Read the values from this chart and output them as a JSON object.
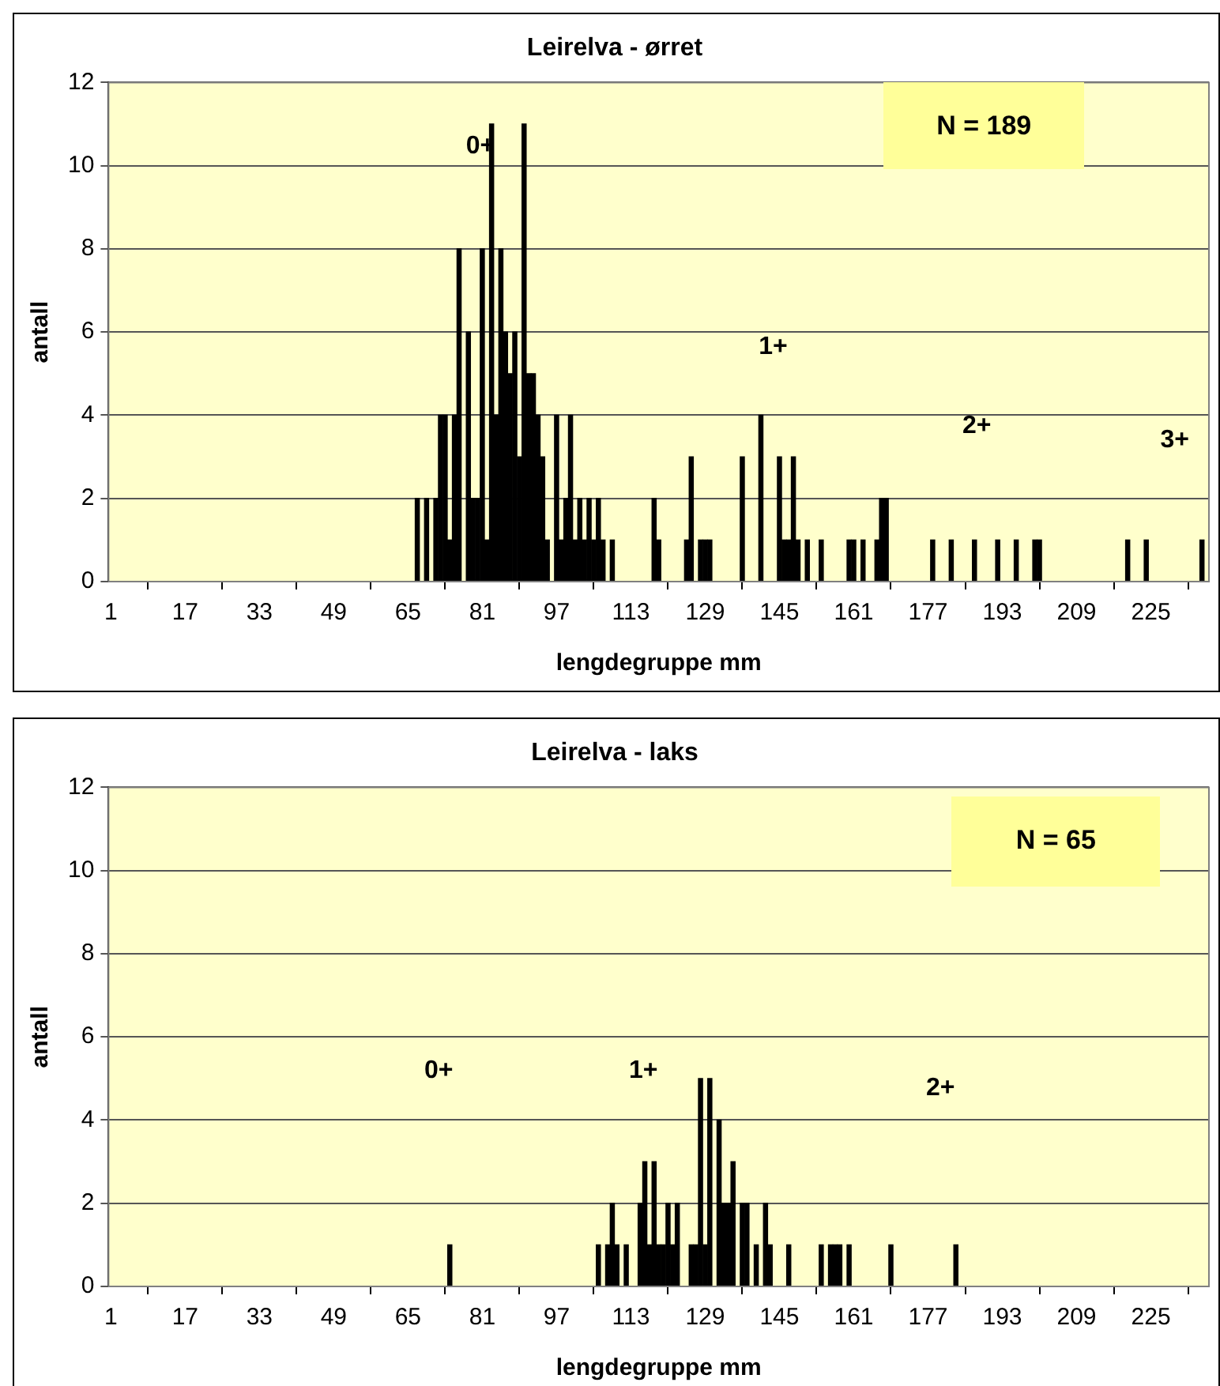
{
  "chart_data": [
    {
      "type": "bar",
      "title": "Leirelva - ørret",
      "xlabel": "lengdegruppe mm",
      "ylabel": "antall",
      "color": "#000000",
      "x": [
        67,
        69,
        71,
        72,
        73,
        74,
        75,
        76,
        78,
        79,
        80,
        81,
        82,
        83,
        84,
        85,
        86,
        87,
        88,
        89,
        90,
        91,
        92,
        93,
        94,
        95,
        97,
        98,
        99,
        100,
        101,
        102,
        103,
        104,
        105,
        106,
        107,
        109,
        118,
        119,
        125,
        126,
        128,
        129,
        130,
        137,
        141,
        145,
        146,
        147,
        148,
        149,
        151,
        154,
        160,
        161,
        163,
        166,
        167,
        168,
        178,
        182,
        187,
        192,
        196,
        200,
        201,
        220,
        224,
        236
      ],
      "values": [
        2,
        2,
        2,
        4,
        4,
        1,
        4,
        8,
        6,
        2,
        2,
        8,
        1,
        11,
        4,
        8,
        6,
        5,
        6,
        3,
        11,
        5,
        5,
        4,
        3,
        1,
        4,
        1,
        2,
        4,
        1,
        2,
        1,
        2,
        1,
        2,
        1,
        1,
        2,
        1,
        1,
        3,
        1,
        1,
        1,
        3,
        4,
        3,
        1,
        1,
        3,
        1,
        1,
        1,
        1,
        1,
        1,
        1,
        2,
        2,
        1,
        1,
        1,
        1,
        1,
        1,
        1,
        1,
        1,
        1
      ],
      "xlim": [
        0.5,
        237.5
      ],
      "xticks": [
        1,
        17,
        33,
        49,
        65,
        81,
        97,
        113,
        129,
        145,
        161,
        177,
        193,
        209,
        225
      ],
      "ylim": [
        0,
        12
      ],
      "yticks": [
        0,
        2,
        4,
        6,
        8,
        10,
        12
      ],
      "grid": "y",
      "legend": false,
      "annotations": [
        "N = 189",
        "0+",
        "1+",
        "2+",
        "3+"
      ]
    },
    {
      "type": "bar",
      "title": "Leirelva - laks",
      "xlabel": "lengdegruppe mm",
      "ylabel": "antall",
      "color": "#000000",
      "x": [
        74,
        106,
        108,
        109,
        110,
        112,
        115,
        116,
        117,
        118,
        119,
        120,
        121,
        122,
        123,
        126,
        127,
        128,
        129,
        130,
        132,
        133,
        134,
        135,
        137,
        138,
        140,
        142,
        143,
        147,
        154,
        156,
        157,
        158,
        160,
        169,
        183
      ],
      "values": [
        1,
        1,
        1,
        2,
        1,
        1,
        2,
        3,
        1,
        3,
        1,
        1,
        2,
        1,
        2,
        1,
        1,
        5,
        1,
        5,
        4,
        2,
        2,
        3,
        2,
        2,
        1,
        2,
        1,
        1,
        1,
        1,
        1,
        1,
        1,
        1,
        1
      ],
      "xlim": [
        0.5,
        237.5
      ],
      "xticks": [
        1,
        17,
        33,
        49,
        65,
        81,
        97,
        113,
        129,
        145,
        161,
        177,
        193,
        209,
        225
      ],
      "ylim": [
        0,
        12
      ],
      "yticks": [
        0,
        2,
        4,
        6,
        8,
        10,
        12
      ],
      "grid": "y",
      "legend": false,
      "annotations": [
        "N = 65",
        "0+",
        "1+",
        "2+"
      ]
    }
  ]
}
